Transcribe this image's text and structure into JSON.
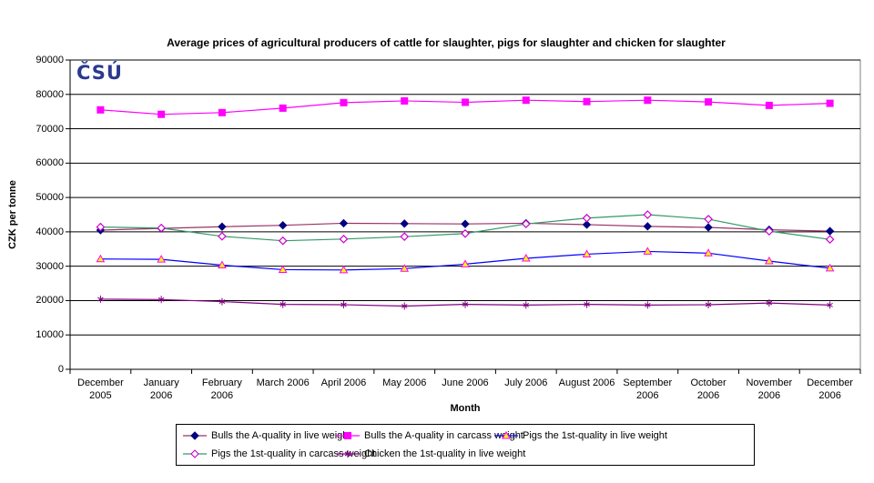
{
  "logo": {
    "text": "ČSÚ",
    "color": "#2B3990"
  },
  "chart_data": {
    "type": "line",
    "title": "Average prices of agricultural producers of cattle for slaughter, pigs for slaughter and chicken for slaughter",
    "xlabel": "Month",
    "ylabel": "CZK per tonne",
    "ylim": [
      0,
      90000
    ],
    "ytick_step": 10000,
    "ytick_labels": [
      "0",
      "10000",
      "20000",
      "30000",
      "40000",
      "50000",
      "60000",
      "70000",
      "80000",
      "90000"
    ],
    "grid": "horizontal",
    "legend_position": "bottom",
    "plot_border_color": "#808080",
    "gridline_color": "#000000",
    "categories": [
      "December 2005",
      "January 2006",
      "February 2006",
      "March 2006",
      "April 2006",
      "May 2006",
      "June 2006",
      "July 2006",
      "August 2006",
      "September 2006",
      "October 2006",
      "November 2006",
      "December 2006"
    ],
    "categories_display": [
      [
        "December",
        "2005"
      ],
      [
        "January",
        "2006"
      ],
      [
        "February",
        "2006"
      ],
      [
        "March 2006"
      ],
      [
        "April 2006"
      ],
      [
        "May 2006"
      ],
      [
        "June 2006"
      ],
      [
        "July 2006"
      ],
      [
        "August 2006"
      ],
      [
        "September",
        "2006"
      ],
      [
        "October",
        "2006"
      ],
      [
        "November",
        "2006"
      ],
      [
        "December",
        "2006"
      ]
    ],
    "series": [
      {
        "name": "Bulls the A-quality in live weight",
        "marker": "diamond",
        "line_color": "#993366",
        "marker_fill": "#000080",
        "marker_stroke": "#000080",
        "values": [
          40500,
          41000,
          41500,
          41900,
          42500,
          42400,
          42300,
          42500,
          42100,
          41600,
          41300,
          40600,
          40200
        ]
      },
      {
        "name": "Bulls the A-quality in carcass weight",
        "marker": "square",
        "line_color": "#FF00FF",
        "marker_fill": "#FF00FF",
        "marker_stroke": "#FF00FF",
        "values": [
          75500,
          74200,
          74700,
          76000,
          77600,
          78100,
          77700,
          78300,
          77900,
          78300,
          77800,
          76800,
          77400
        ]
      },
      {
        "name": "Pigs the 1st-quality in live weight",
        "marker": "triangle",
        "line_color": "#0000FF",
        "marker_fill": "#FFFF00",
        "marker_stroke": "#FF00FF",
        "values": [
          32100,
          32000,
          30300,
          29000,
          28900,
          29300,
          30600,
          32300,
          33500,
          34300,
          33800,
          31500,
          29400
        ]
      },
      {
        "name": "Pigs the 1st-quality in carcass weight",
        "marker": "open-diamond",
        "line_color": "#339966",
        "marker_fill": "#FFFFFF",
        "marker_stroke": "#CC00CC",
        "values": [
          41400,
          41100,
          38700,
          37400,
          37900,
          38600,
          39500,
          42300,
          44000,
          45000,
          43700,
          40200,
          37800
        ]
      },
      {
        "name": "Chicken the 1st-quality in live weight",
        "marker": "asterisk",
        "line_color": "#800080",
        "marker_fill": "#800080",
        "marker_stroke": "#800080",
        "values": [
          20400,
          20300,
          19700,
          18900,
          18800,
          18400,
          18900,
          18700,
          18900,
          18700,
          18800,
          19300,
          18700
        ]
      }
    ],
    "legend_rows": [
      [
        0,
        1,
        2
      ],
      [
        3,
        4
      ]
    ]
  }
}
